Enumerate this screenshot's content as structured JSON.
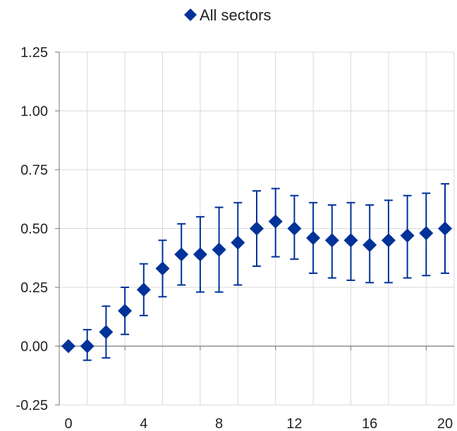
{
  "chart_data": {
    "type": "scatter",
    "title": "",
    "xlabel": "",
    "ylabel": "",
    "xlim": [
      0,
      20
    ],
    "ylim": [
      -0.25,
      1.25
    ],
    "x_ticks": [
      0,
      4,
      8,
      12,
      16,
      20
    ],
    "y_ticks": [
      -0.25,
      0.0,
      0.25,
      0.5,
      0.75,
      1.0,
      1.25
    ],
    "y_tick_labels": [
      "-0.25",
      "0.00",
      "0.25",
      "0.50",
      "0.75",
      "1.00",
      "1.25"
    ],
    "x_tick_labels": [
      "0",
      "4",
      "8",
      "12",
      "16",
      "20"
    ],
    "grid": true,
    "legend_position": "top-center",
    "series": [
      {
        "name": "All sectors",
        "color": "#003299",
        "marker": "diamond",
        "x": [
          0,
          1,
          2,
          3,
          4,
          5,
          6,
          7,
          8,
          9,
          10,
          11,
          12,
          13,
          14,
          15,
          16,
          17,
          18,
          19,
          20
        ],
        "y": [
          0.0,
          0.0,
          0.06,
          0.15,
          0.24,
          0.33,
          0.39,
          0.39,
          0.41,
          0.44,
          0.5,
          0.53,
          0.5,
          0.46,
          0.45,
          0.45,
          0.43,
          0.45,
          0.47,
          0.48,
          0.5
        ],
        "lower": [
          0.0,
          -0.06,
          -0.05,
          0.05,
          0.13,
          0.21,
          0.26,
          0.23,
          0.23,
          0.26,
          0.34,
          0.38,
          0.37,
          0.31,
          0.29,
          0.28,
          0.27,
          0.27,
          0.29,
          0.3,
          0.31
        ],
        "upper": [
          0.0,
          0.07,
          0.17,
          0.25,
          0.35,
          0.45,
          0.52,
          0.55,
          0.59,
          0.61,
          0.66,
          0.67,
          0.64,
          0.61,
          0.6,
          0.61,
          0.6,
          0.62,
          0.64,
          0.65,
          0.69
        ]
      }
    ]
  }
}
